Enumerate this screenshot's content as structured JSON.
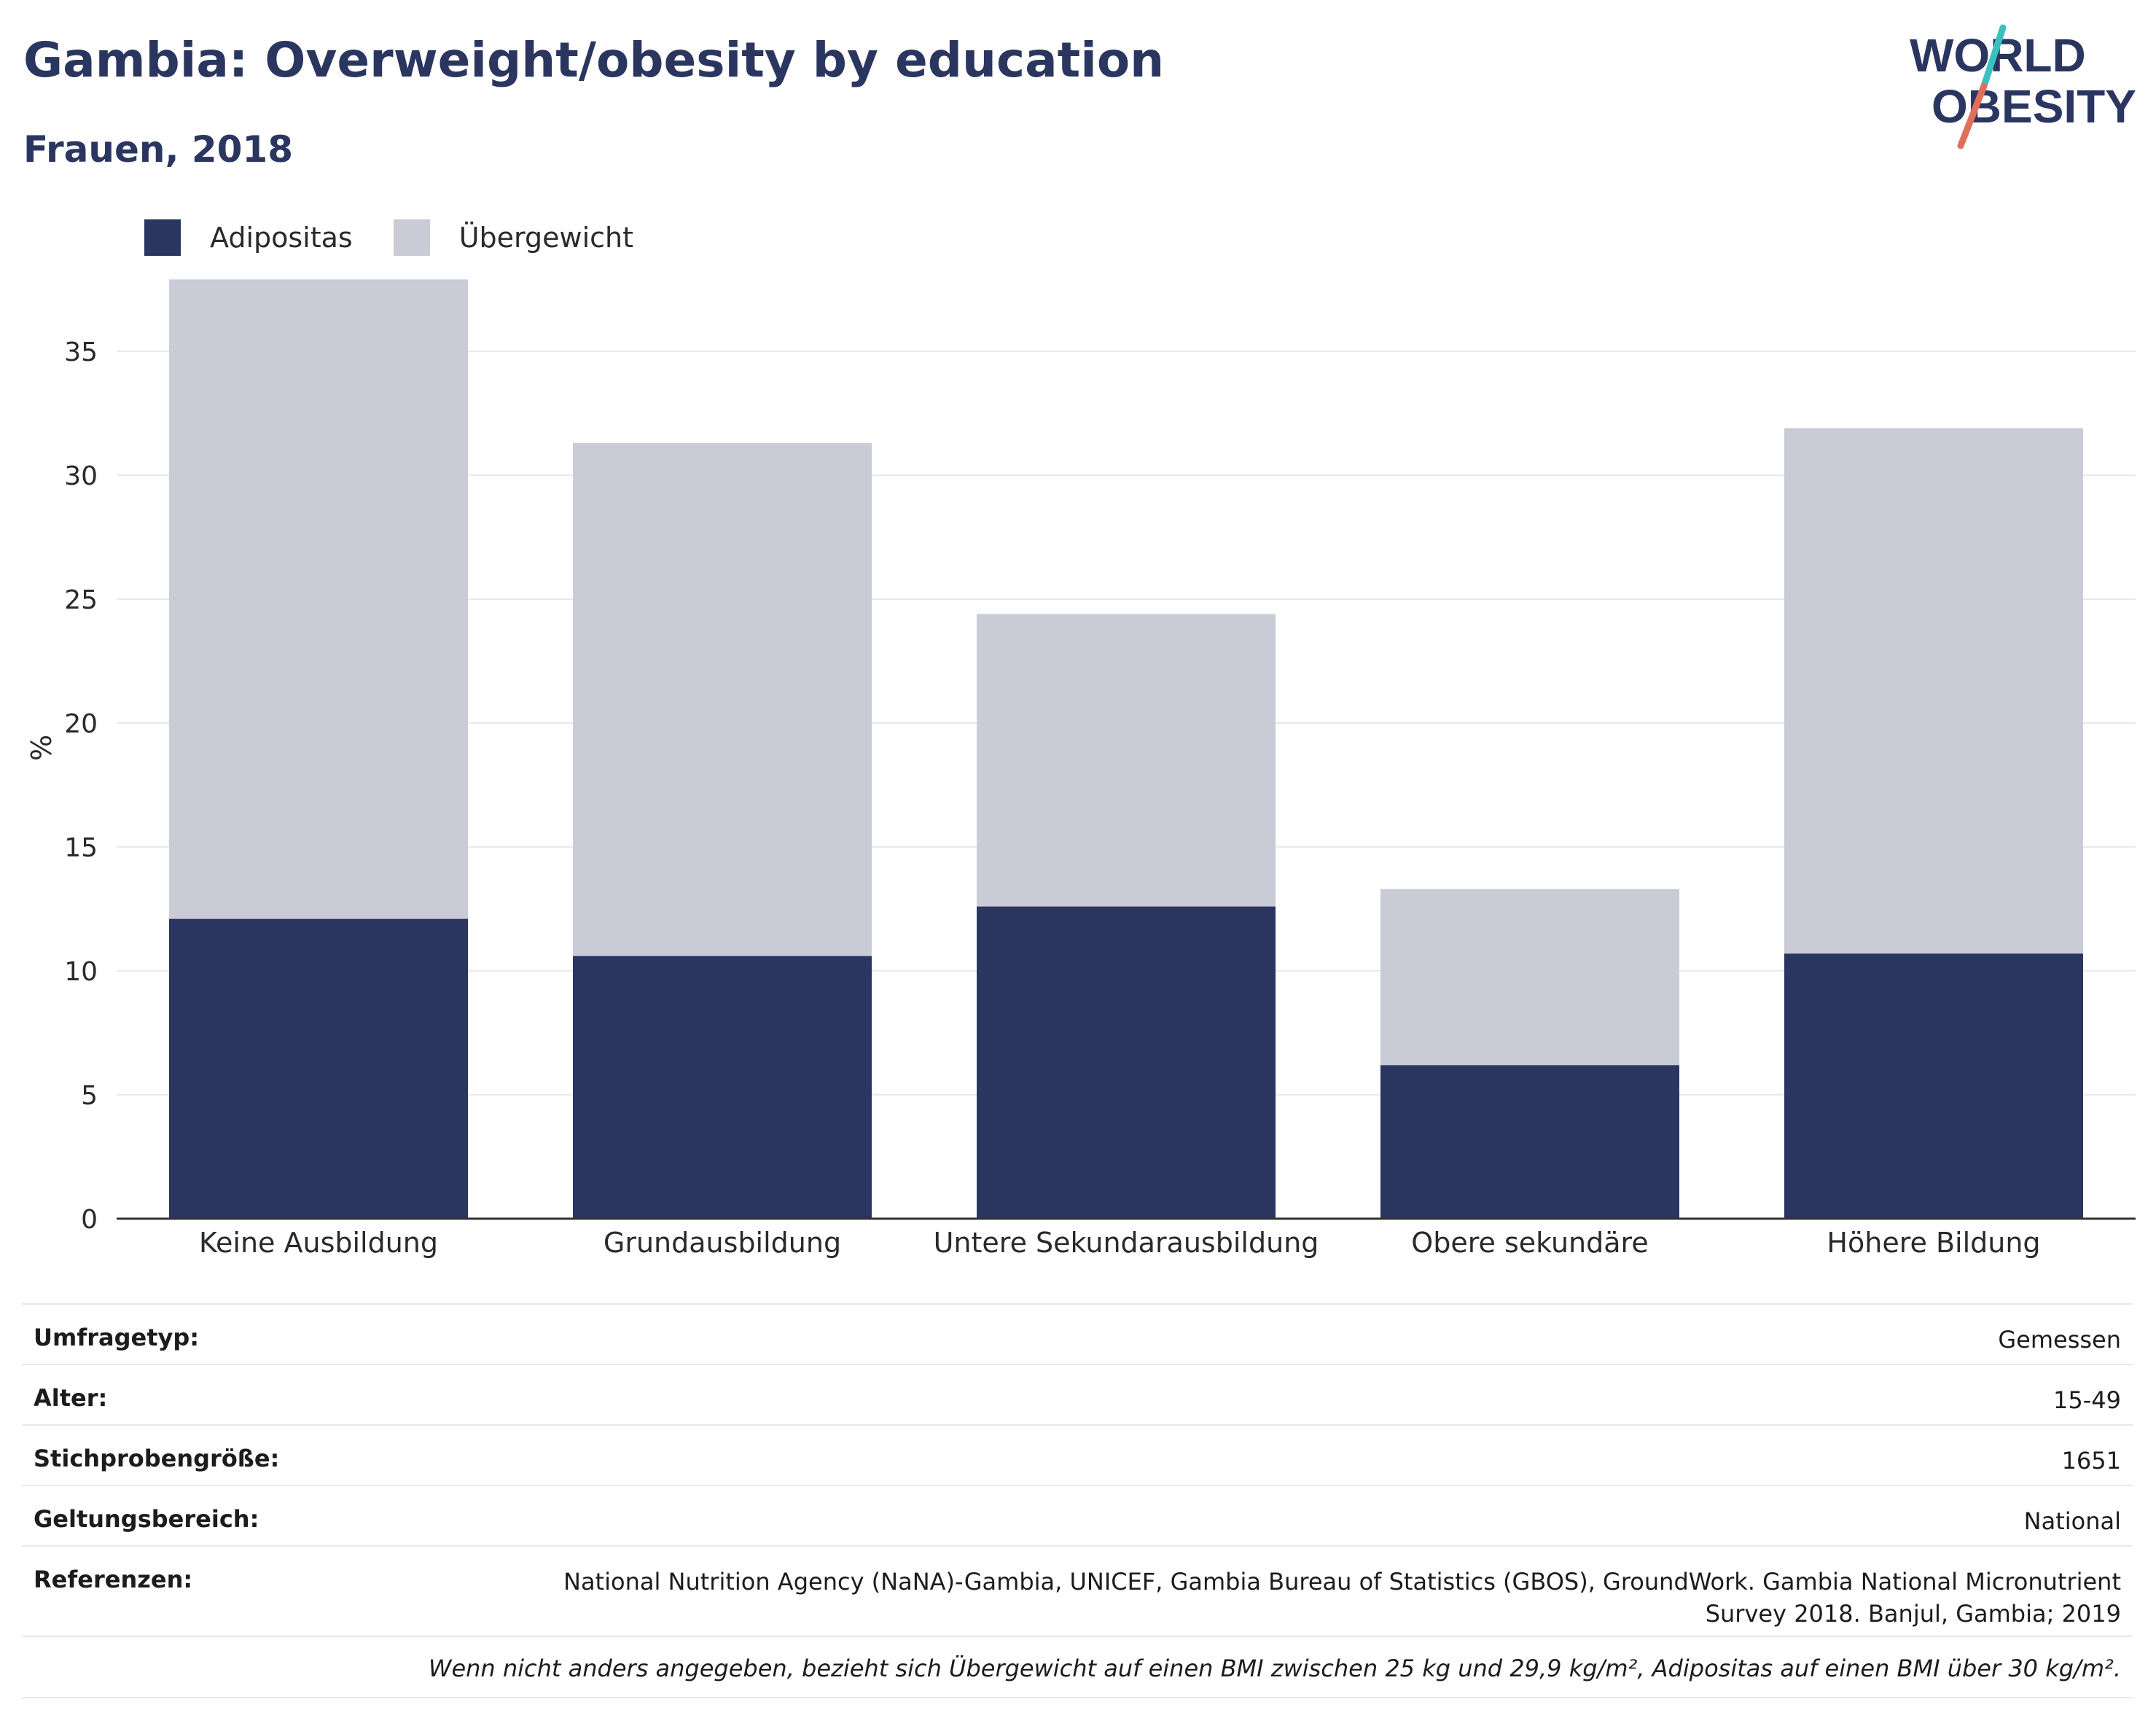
{
  "header": {
    "title": "Gambia: Overweight/obesity by education",
    "subtitle": "Frauen, 2018"
  },
  "logo": {
    "line1": "WORLD",
    "line2": "OBESITY",
    "text_color": "#2a365f",
    "slash_colors": [
      "#e0705c",
      "#3bbfbf"
    ]
  },
  "legend": [
    {
      "label": "Adipositas",
      "color": "#2a365f"
    },
    {
      "label": "Übergewicht",
      "color": "#c9cbd7"
    }
  ],
  "chart_data": {
    "type": "bar",
    "stacked": true,
    "categories": [
      "Keine Ausbildung",
      "Grundausbildung",
      "Untere Sekundarausbildung",
      "Obere sekundäre",
      "Höhere Bildung"
    ],
    "series": [
      {
        "name": "Adipositas",
        "color": "#2a365f",
        "values": [
          12.1,
          10.6,
          12.6,
          6.2,
          10.7
        ]
      },
      {
        "name": "Übergewicht",
        "color": "#c9cbd7",
        "values": [
          25.8,
          20.7,
          11.8,
          7.1,
          21.2
        ]
      }
    ],
    "ylabel": "%",
    "ylim": [
      0,
      38
    ],
    "yticks": [
      0,
      5,
      10,
      15,
      20,
      25,
      30,
      35
    ],
    "grid": true
  },
  "info": {
    "rows": [
      {
        "key": "Umfragetyp:",
        "value": "Gemessen"
      },
      {
        "key": "Alter:",
        "value": "15-49"
      },
      {
        "key": "Stichprobengröße:",
        "value": "1651"
      },
      {
        "key": "Geltungsbereich:",
        "value": "National"
      }
    ],
    "references_key": "Referenzen:",
    "references_value_line1": "National Nutrition Agency (NaNA)-Gambia, UNICEF, Gambia Bureau of Statistics (GBOS), GroundWork. Gambia National Micronutrient",
    "references_value_line2": "Survey 2018. Banjul, Gambia; 2019",
    "note": "Wenn nicht anders angegeben, bezieht sich Übergewicht auf einen BMI zwischen 25 kg und 29,9 kg/m², Adipositas auf einen BMI über 30 kg/m²."
  }
}
